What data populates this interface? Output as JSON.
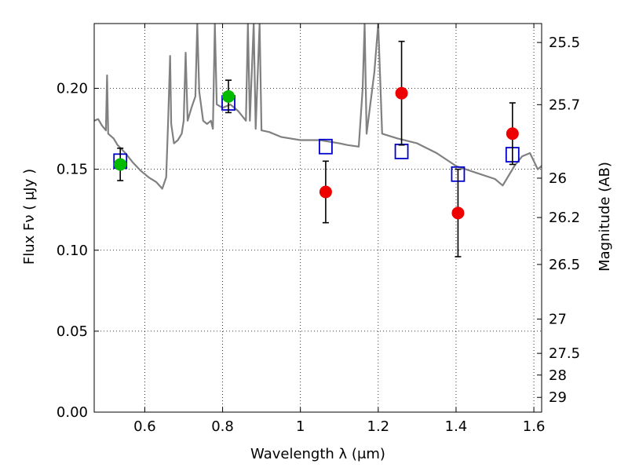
{
  "chart_data": {
    "type": "scatter",
    "xlabel": "Wavelength  λ (μm)",
    "ylabel": "Flux  Fν  ( μJy )",
    "y2label": "Magnitude (AB)",
    "xlim": [
      0.47,
      1.62
    ],
    "ylim": [
      0.0,
      0.24
    ],
    "grid": true,
    "x_ticks": [
      0.6,
      0.8,
      1.0,
      1.2,
      1.4,
      1.6
    ],
    "x_tick_labels": [
      "0.6",
      "0.8",
      "1",
      "1.2",
      "1.4",
      "1.6"
    ],
    "y_ticks": [
      0.0,
      0.05,
      0.1,
      0.15,
      0.2
    ],
    "y_tick_labels": [
      "0.00",
      "0.05",
      "0.10",
      "0.15",
      "0.20"
    ],
    "right_axis_ticks": [
      {
        "label": "25.5",
        "flux": 0.2283
      },
      {
        "label": "25.7",
        "flux": 0.1899
      },
      {
        "label": "26",
        "flux": 0.1445
      },
      {
        "label": "26.2",
        "flux": 0.1202
      },
      {
        "label": "26.5",
        "flux": 0.0912
      },
      {
        "label": "27",
        "flux": 0.0575
      },
      {
        "label": "27.5",
        "flux": 0.0363
      },
      {
        "label": "28",
        "flux": 0.0229
      },
      {
        "label": "29",
        "flux": 0.0091
      }
    ],
    "series": [
      {
        "name": "model spectrum",
        "kind": "line",
        "color": "#808080",
        "points": [
          [
            0.47,
            0.18
          ],
          [
            0.48,
            0.181
          ],
          [
            0.49,
            0.177
          ],
          [
            0.5,
            0.174
          ],
          [
            0.503,
            0.208
          ],
          [
            0.506,
            0.172
          ],
          [
            0.52,
            0.169
          ],
          [
            0.53,
            0.165
          ],
          [
            0.55,
            0.16
          ],
          [
            0.57,
            0.154
          ],
          [
            0.59,
            0.149
          ],
          [
            0.61,
            0.145
          ],
          [
            0.63,
            0.142
          ],
          [
            0.645,
            0.138
          ],
          [
            0.655,
            0.145
          ],
          [
            0.66,
            0.18
          ],
          [
            0.665,
            0.22
          ],
          [
            0.668,
            0.178
          ],
          [
            0.675,
            0.166
          ],
          [
            0.685,
            0.168
          ],
          [
            0.695,
            0.172
          ],
          [
            0.7,
            0.18
          ],
          [
            0.705,
            0.222
          ],
          [
            0.71,
            0.18
          ],
          [
            0.72,
            0.188
          ],
          [
            0.73,
            0.195
          ],
          [
            0.735,
            0.24
          ],
          [
            0.74,
            0.198
          ],
          [
            0.75,
            0.18
          ],
          [
            0.76,
            0.178
          ],
          [
            0.77,
            0.18
          ],
          [
            0.775,
            0.175
          ],
          [
            0.78,
            0.24
          ],
          [
            0.785,
            0.19
          ],
          [
            0.8,
            0.188
          ],
          [
            0.82,
            0.19
          ],
          [
            0.84,
            0.186
          ],
          [
            0.86,
            0.18
          ],
          [
            0.865,
            0.24
          ],
          [
            0.87,
            0.18
          ],
          [
            0.88,
            0.24
          ],
          [
            0.885,
            0.175
          ],
          [
            0.895,
            0.24
          ],
          [
            0.9,
            0.174
          ],
          [
            0.92,
            0.173
          ],
          [
            0.95,
            0.17
          ],
          [
            1.0,
            0.168
          ],
          [
            1.05,
            0.168
          ],
          [
            1.1,
            0.166
          ],
          [
            1.12,
            0.165
          ],
          [
            1.15,
            0.164
          ],
          [
            1.16,
            0.2
          ],
          [
            1.165,
            0.24
          ],
          [
            1.17,
            0.172
          ],
          [
            1.19,
            0.21
          ],
          [
            1.2,
            0.24
          ],
          [
            1.21,
            0.172
          ],
          [
            1.25,
            0.169
          ],
          [
            1.3,
            0.166
          ],
          [
            1.35,
            0.16
          ],
          [
            1.4,
            0.152
          ],
          [
            1.45,
            0.148
          ],
          [
            1.5,
            0.144
          ],
          [
            1.52,
            0.14
          ],
          [
            1.55,
            0.152
          ],
          [
            1.57,
            0.158
          ],
          [
            1.59,
            0.16
          ],
          [
            1.6,
            0.155
          ],
          [
            1.61,
            0.15
          ],
          [
            1.62,
            0.152
          ]
        ]
      },
      {
        "name": "model photometry",
        "kind": "square",
        "color": "#0000cc",
        "points": [
          [
            0.537,
            0.155
          ],
          [
            0.815,
            0.191
          ],
          [
            1.065,
            0.164
          ],
          [
            1.26,
            0.161
          ],
          [
            1.405,
            0.147
          ],
          [
            1.545,
            0.159
          ]
        ]
      },
      {
        "name": "observed (green)",
        "kind": "circle",
        "color": "#00bb00",
        "points": [
          [
            0.537,
            0.153,
            0.01
          ],
          [
            0.815,
            0.195,
            0.01
          ]
        ]
      },
      {
        "name": "observed (red)",
        "kind": "circle",
        "color": "#ee0000",
        "points": [
          [
            1.065,
            0.136,
            0.019
          ],
          [
            1.26,
            0.197,
            0.032
          ],
          [
            1.405,
            0.123,
            0.027
          ],
          [
            1.545,
            0.172,
            0.019
          ]
        ]
      }
    ]
  }
}
